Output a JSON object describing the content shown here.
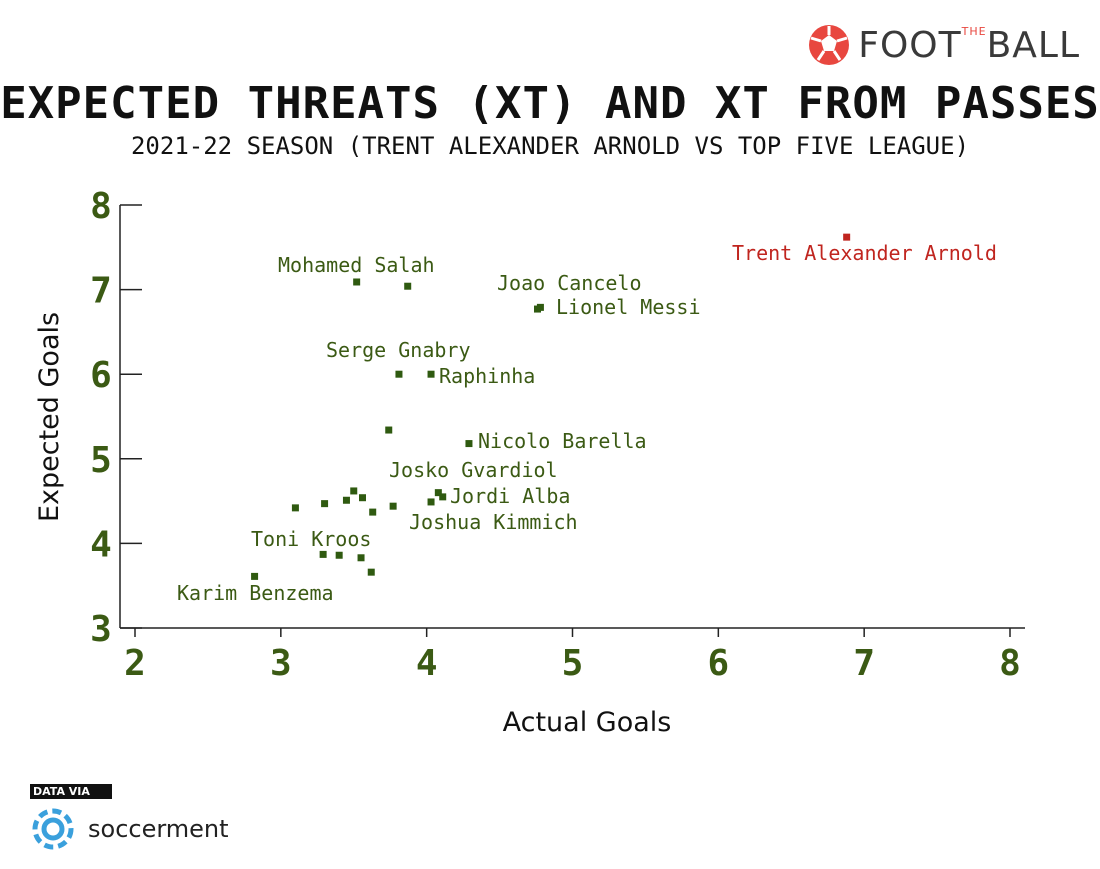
{
  "brand": {
    "name": "FOOTBALL",
    "part1": "FOOT",
    "small": "THE",
    "part2": "BALL",
    "accent": "#e8473f"
  },
  "title": "EXPECTED THREATS (XT) AND XT FROM PASSES",
  "subtitle": "2021-22 SEASON (TRENT ALEXANDER ARNOLD VS TOP FIVE LEAGUE)",
  "footer": {
    "data_via": "DATA VIA",
    "source": "soccerment",
    "source_icon": "soccerment-logo-icon"
  },
  "colors": {
    "points": "#2f5a10",
    "labels": "#3b5a14",
    "highlight": "#c0251f"
  },
  "chart_data": {
    "type": "scatter",
    "xlabel": "Actual Goals",
    "ylabel": "Expected Goals",
    "xlim": [
      2,
      8
    ],
    "ylim": [
      3,
      8
    ],
    "xticks": [
      2,
      3,
      4,
      5,
      6,
      7,
      8
    ],
    "yticks": [
      3,
      4,
      5,
      6,
      7,
      8
    ],
    "grid": false,
    "points": [
      {
        "x": 6.88,
        "y": 7.62,
        "label": "Trent Alexander Arnold",
        "highlight": true
      },
      {
        "x": 3.52,
        "y": 7.09,
        "label": "Mohamed Salah"
      },
      {
        "x": 3.87,
        "y": 7.04,
        "label": ""
      },
      {
        "x": 4.78,
        "y": 6.79,
        "label": "Lionel Messi"
      },
      {
        "x": 4.76,
        "y": 6.77,
        "label": "Joao Cancelo"
      },
      {
        "x": 3.81,
        "y": 6.0,
        "label": "Serge Gnabry"
      },
      {
        "x": 4.03,
        "y": 6.0,
        "label": "Raphinha"
      },
      {
        "x": 3.74,
        "y": 5.34,
        "label": ""
      },
      {
        "x": 4.29,
        "y": 5.18,
        "label": "Nicolo Barella"
      },
      {
        "x": 4.08,
        "y": 4.6,
        "label": "Josko Gvardiol"
      },
      {
        "x": 4.11,
        "y": 4.55,
        "label": "Jordi Alba"
      },
      {
        "x": 4.03,
        "y": 4.49,
        "label": "Joshua Kimmich"
      },
      {
        "x": 3.5,
        "y": 4.62,
        "label": ""
      },
      {
        "x": 3.45,
        "y": 4.51,
        "label": ""
      },
      {
        "x": 3.56,
        "y": 4.54,
        "label": ""
      },
      {
        "x": 3.3,
        "y": 4.47,
        "label": ""
      },
      {
        "x": 3.1,
        "y": 4.42,
        "label": ""
      },
      {
        "x": 3.77,
        "y": 4.44,
        "label": ""
      },
      {
        "x": 3.63,
        "y": 4.37,
        "label": ""
      },
      {
        "x": 3.29,
        "y": 3.87,
        "label": "Toni Kroos"
      },
      {
        "x": 3.4,
        "y": 3.86,
        "label": ""
      },
      {
        "x": 3.55,
        "y": 3.83,
        "label": ""
      },
      {
        "x": 3.62,
        "y": 3.66,
        "label": ""
      },
      {
        "x": 2.82,
        "y": 3.61,
        "label": "Karim Benzema"
      }
    ]
  }
}
